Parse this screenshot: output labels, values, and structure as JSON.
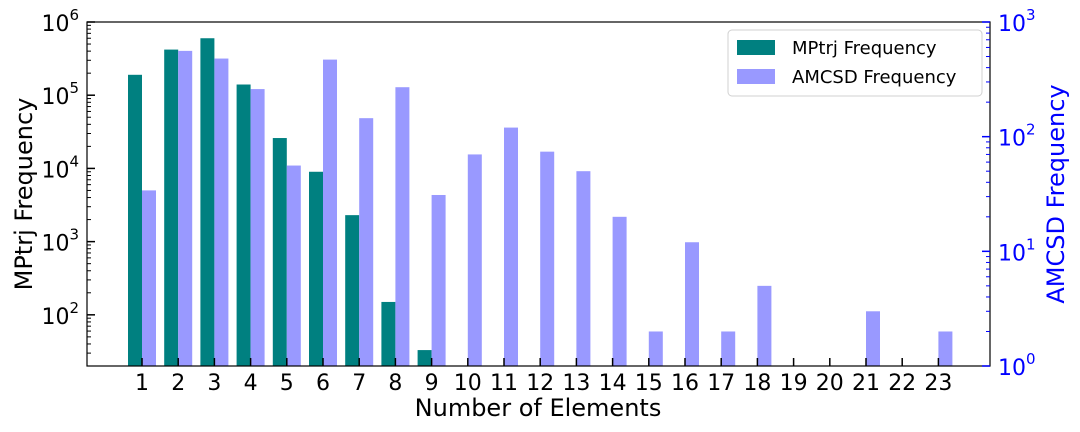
{
  "chart_data": {
    "type": "bar",
    "xlabel": "Number of Elements",
    "ylabel_left": "MPtrj Frequency",
    "ylabel_right": "AMCSD Frequency",
    "scale": "log",
    "left_axis": {
      "ylim": [
        20,
        1000000
      ],
      "ticks": [
        {
          "value": 100,
          "base": "10",
          "exp": "2"
        },
        {
          "value": 1000,
          "base": "10",
          "exp": "3"
        },
        {
          "value": 10000,
          "base": "10",
          "exp": "4"
        },
        {
          "value": 100000,
          "base": "10",
          "exp": "5"
        },
        {
          "value": 1000000,
          "base": "10",
          "exp": "6"
        }
      ],
      "color": "#000000"
    },
    "right_axis": {
      "ylim": [
        1,
        1000
      ],
      "ticks": [
        {
          "value": 1,
          "base": "10",
          "exp": "0"
        },
        {
          "value": 10,
          "base": "10",
          "exp": "1"
        },
        {
          "value": 100,
          "base": "10",
          "exp": "2"
        },
        {
          "value": 1000,
          "base": "10",
          "exp": "3"
        }
      ],
      "color": "#0000ff"
    },
    "categories": [
      "1",
      "2",
      "3",
      "4",
      "5",
      "6",
      "7",
      "8",
      "9",
      "10",
      "11",
      "12",
      "13",
      "14",
      "15",
      "16",
      "17",
      "18",
      "19",
      "20",
      "21",
      "22",
      "23"
    ],
    "series": [
      {
        "name": "MPtrj Frequency",
        "axis": "left",
        "color": "#008080",
        "values": [
          190000,
          420000,
          600000,
          140000,
          26000,
          9000,
          2300,
          150,
          33,
          null,
          null,
          null,
          null,
          null,
          null,
          null,
          null,
          null,
          null,
          null,
          null,
          null,
          null
        ]
      },
      {
        "name": "AMCSD Frequency",
        "axis": "right",
        "color": "#9999ff",
        "values": [
          34,
          560,
          480,
          260,
          56,
          470,
          145,
          270,
          31,
          70,
          120,
          74,
          50,
          20,
          2,
          12,
          2,
          5,
          null,
          null,
          3,
          null,
          2
        ]
      }
    ],
    "legend": {
      "placement": "top-right"
    }
  }
}
